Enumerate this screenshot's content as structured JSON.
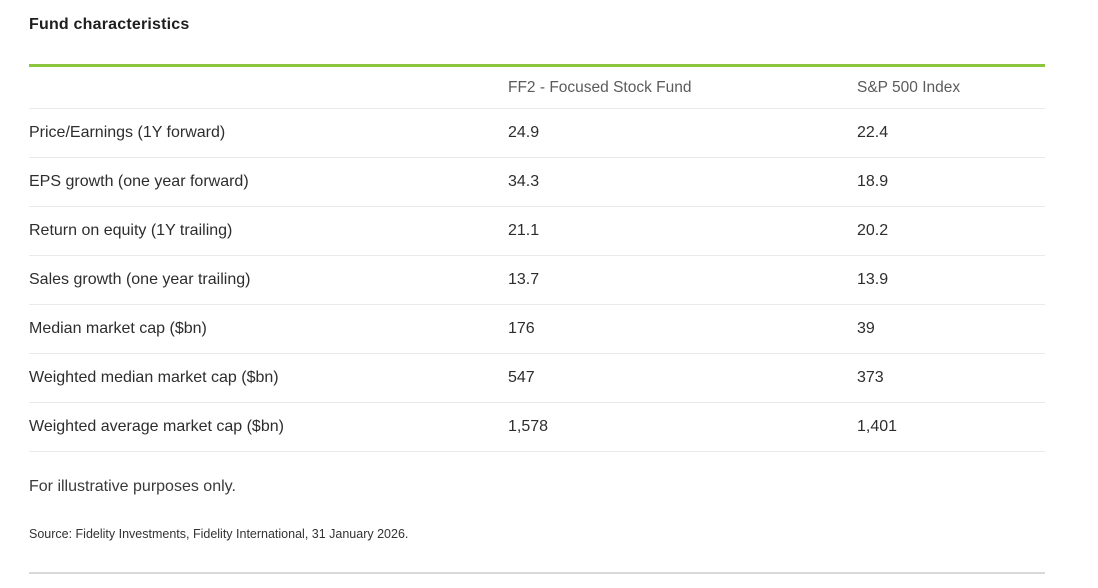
{
  "page": {
    "title": "Fund characteristics",
    "footnote": "For illustrative purposes only.",
    "source": "Source: Fidelity Investments, Fidelity International, 31 January 2026."
  },
  "table": {
    "columns": [
      "",
      "FF2 - Focused Stock Fund",
      "S&P 500 Index"
    ],
    "rows": [
      {
        "label": "Price/Earnings (1Y forward)",
        "fund": "24.9",
        "index": "22.4"
      },
      {
        "label": "EPS growth (one year forward)",
        "fund": "34.3",
        "index": "18.9"
      },
      {
        "label": "Return on equity (1Y trailing)",
        "fund": "21.1",
        "index": "20.2"
      },
      {
        "label": "Sales growth (one year trailing)",
        "fund": "13.7",
        "index": "13.9"
      },
      {
        "label": "Median market cap ($bn)",
        "fund": "176",
        "index": "39"
      },
      {
        "label": "Weighted median market cap ($bn)",
        "fund": "547",
        "index": "373"
      },
      {
        "label": "Weighted average market cap ($bn)",
        "fund": "1,578",
        "index": "1,401"
      }
    ]
  },
  "colors": {
    "accent_green": "#8cc63f",
    "row_divider": "#eaeaea",
    "bottom_rule": "#d9d9d9",
    "title_text": "#1e1e1e",
    "body_text": "#2d2d2d",
    "header_text": "#5b5b5b"
  }
}
